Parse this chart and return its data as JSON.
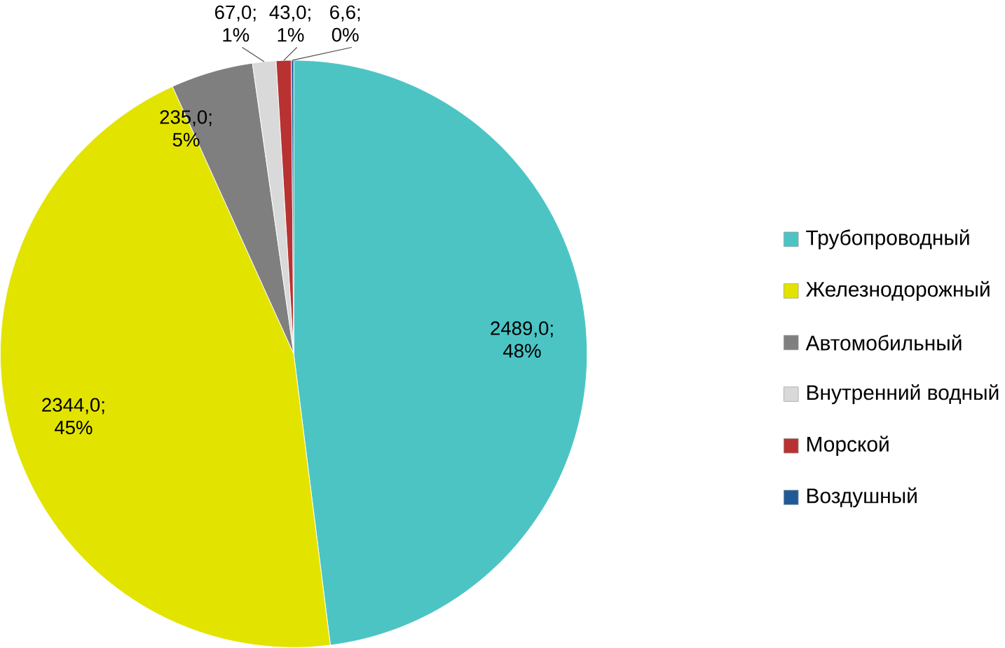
{
  "chart_data": {
    "type": "pie",
    "categories": [
      "Трубопроводный",
      "Железнодорожный",
      "Автомобильный",
      "Внутренний водный",
      "Морской",
      "Воздушный"
    ],
    "values": [
      2489.0,
      2344.0,
      235.0,
      67.0,
      43.0,
      6.6
    ],
    "colors": [
      "#4cc4c4",
      "#e3e300",
      "#7f7f7f",
      "#d9d9d9",
      "#b83232",
      "#1f5a96"
    ],
    "value_labels": [
      "2489,0; 48%",
      "2344,0; 45%",
      "235,0; 5%",
      "67,0; 1%",
      "43,0; 1%",
      "6,6; 0%"
    ],
    "legend": "right"
  }
}
